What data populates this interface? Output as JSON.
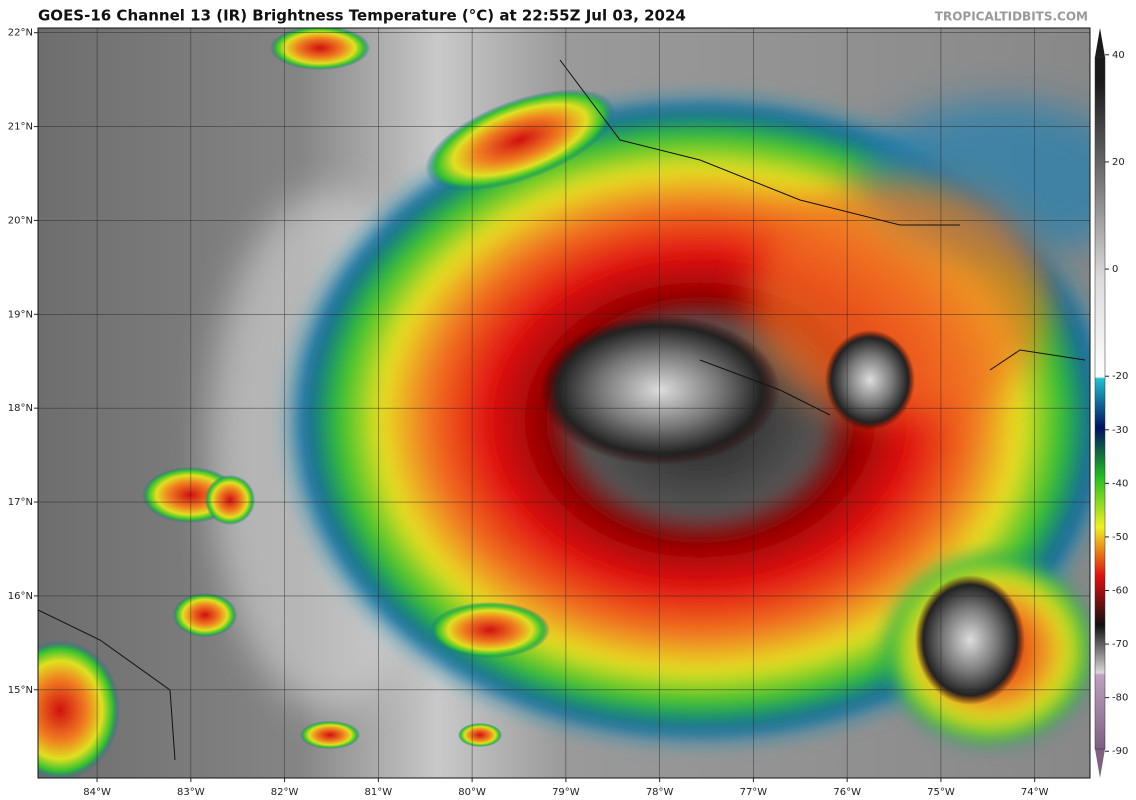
{
  "map": {
    "title": "GOES-16 Channel 13 (IR) Brightness Temperature (°C) at 22:55Z Jul 03, 2024",
    "credit": "TROPICALTIDBITS.COM",
    "lonlim": [
      -84.63,
      -73.41
    ],
    "latlim": [
      14.06,
      22.05
    ],
    "lon_ticks": [
      {
        "value": -84,
        "label": "84°W"
      },
      {
        "value": -83,
        "label": "83°W"
      },
      {
        "value": -82,
        "label": "82°W"
      },
      {
        "value": -81,
        "label": "81°W"
      },
      {
        "value": -80,
        "label": "80°W"
      },
      {
        "value": -79,
        "label": "79°W"
      },
      {
        "value": -78,
        "label": "78°W"
      },
      {
        "value": -77,
        "label": "77°W"
      },
      {
        "value": -76,
        "label": "76°W"
      },
      {
        "value": -75,
        "label": "75°W"
      },
      {
        "value": -74,
        "label": "74°W"
      }
    ],
    "lat_ticks": [
      {
        "value": 22,
        "label": "22°N"
      },
      {
        "value": 21,
        "label": "21°N"
      },
      {
        "value": 20,
        "label": "20°N"
      },
      {
        "value": 19,
        "label": "19°N"
      },
      {
        "value": 18,
        "label": "18°N"
      },
      {
        "value": 17,
        "label": "17°N"
      },
      {
        "value": 16,
        "label": "16°N"
      },
      {
        "value": 15,
        "label": "15°N"
      }
    ],
    "grid": true,
    "colorbar": {
      "lim": [
        -95,
        45
      ],
      "ticks": [
        40,
        20,
        0,
        -20,
        -30,
        -40,
        -50,
        -60,
        -70,
        -80,
        -90
      ]
    }
  }
}
